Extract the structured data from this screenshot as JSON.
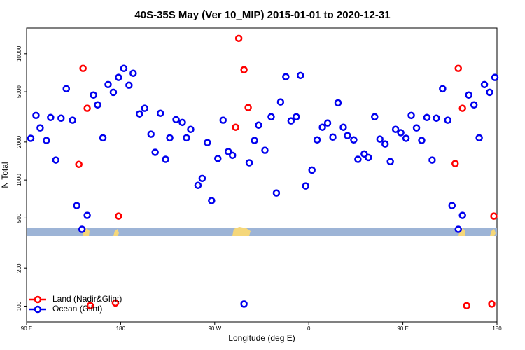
{
  "chart_data": {
    "type": "scatter",
    "title": "40S-35S May (Ver 10_MIP)   2015-01-01 to 2020-12-31",
    "x_label": "Longitude (deg E)",
    "y_label": "N Total",
    "log_y": true,
    "legend": "bottom-left",
    "xlim": [
      90,
      540
    ],
    "ylim": [
      75,
      16000
    ],
    "xticks": [
      {
        "value": 90,
        "label": "90 E"
      },
      {
        "value": 180,
        "label": "180"
      },
      {
        "value": 270,
        "label": "90 W"
      },
      {
        "value": 360,
        "label": "0"
      },
      {
        "value": 450,
        "label": "90 E"
      },
      {
        "value": 540,
        "label": "180"
      }
    ],
    "yticks": [
      100,
      200,
      500,
      1000,
      2000,
      5000,
      10000
    ],
    "series": [
      {
        "name": "Land (Nadir&Glint)",
        "color": "#ff0000",
        "x": [
          140,
          144,
          148,
          151,
          178,
          175,
          293,
          298,
          302,
          290,
          500,
          503,
          507,
          511,
          537,
          535
        ],
        "values": [
          1330,
          7650,
          3700,
          101,
          518,
          106,
          13240,
          7460,
          3750,
          2620,
          1350,
          7650,
          3700,
          101,
          518,
          104
        ]
      },
      {
        "name": "Ocean (Glint)",
        "color": "#0000ee",
        "x": [
          94,
          99,
          103,
          109,
          113,
          118,
          123,
          128,
          134,
          138,
          143,
          148,
          154,
          158,
          163,
          168,
          173,
          178,
          183,
          188,
          192,
          198,
          203,
          209,
          213,
          218,
          223,
          227,
          233,
          239,
          243,
          247,
          254,
          258,
          263,
          267,
          273,
          278,
          283,
          287,
          298,
          303,
          308,
          312,
          318,
          324,
          329,
          333,
          338,
          343,
          348,
          352,
          357,
          363,
          368,
          373,
          378,
          383,
          388,
          393,
          397,
          403,
          407,
          413,
          417,
          423,
          428,
          433,
          438,
          443,
          448,
          453,
          458,
          463,
          468,
          473,
          478,
          482,
          488,
          493,
          497,
          503,
          507,
          513,
          518,
          523,
          528,
          533,
          538
        ],
        "values": [
          2140,
          3250,
          2590,
          2060,
          3130,
          1440,
          3090,
          5280,
          2980,
          628,
          407,
          525,
          4710,
          3940,
          2160,
          5700,
          4950,
          6490,
          7650,
          5630,
          7000,
          3340,
          3700,
          2310,
          1660,
          3380,
          1460,
          2160,
          3010,
          2860,
          2160,
          2520,
          908,
          1030,
          1980,
          687,
          1480,
          2980,
          1680,
          1570,
          104,
          1370,
          2060,
          2720,
          1720,
          3170,
          790,
          4150,
          6570,
          2940,
          3170,
          6730,
          897,
          1200,
          2080,
          2620,
          2830,
          2190,
          4090,
          2620,
          2250,
          2080,
          1460,
          1610,
          1510,
          3170,
          2110,
          1930,
          1400,
          2520,
          2370,
          2140,
          3250,
          2590,
          2060,
          3130,
          1440,
          3090,
          5280,
          2980,
          628,
          407,
          525,
          4710,
          3940,
          2160,
          5700,
          4950,
          6490
        ]
      }
    ]
  }
}
